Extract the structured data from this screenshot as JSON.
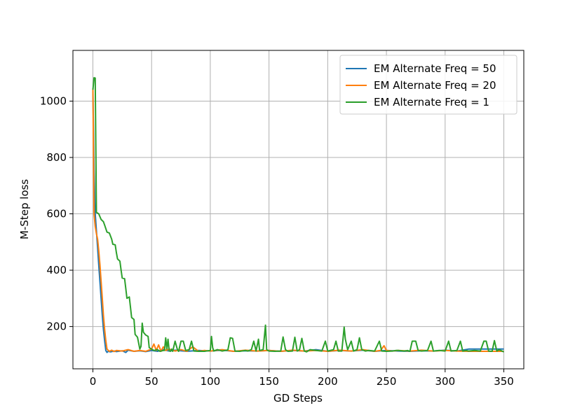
{
  "chart_data": {
    "type": "line",
    "title": "",
    "xlabel": "GD Steps",
    "ylabel": "M-Step loss",
    "xlim": [
      -17,
      367
    ],
    "ylim": [
      50,
      1180
    ],
    "xticks": [
      0,
      50,
      100,
      150,
      200,
      250,
      300,
      350
    ],
    "yticks": [
      200,
      400,
      600,
      800,
      1000
    ],
    "grid": true,
    "legend_position": "top-right",
    "series": [
      {
        "name": "EM Alternate Freq = 50",
        "color": "#1f77b4",
        "points": [
          [
            0,
            1035
          ],
          [
            1,
            760
          ],
          [
            2,
            600
          ],
          [
            3,
            540
          ],
          [
            4,
            480
          ],
          [
            5,
            420
          ],
          [
            6,
            360
          ],
          [
            7,
            300
          ],
          [
            8,
            240
          ],
          [
            9,
            190
          ],
          [
            10,
            150
          ],
          [
            11,
            115
          ],
          [
            12,
            108
          ],
          [
            13,
            112
          ],
          [
            15,
            110
          ],
          [
            18,
            113
          ],
          [
            20,
            111
          ],
          [
            25,
            114
          ],
          [
            28,
            108
          ],
          [
            30,
            116
          ],
          [
            35,
            112
          ],
          [
            40,
            114
          ],
          [
            45,
            111
          ],
          [
            50,
            115
          ],
          [
            55,
            112
          ],
          [
            60,
            118
          ],
          [
            65,
            113
          ],
          [
            70,
            116
          ],
          [
            80,
            112
          ],
          [
            90,
            115
          ],
          [
            100,
            113
          ],
          [
            110,
            116
          ],
          [
            120,
            112
          ],
          [
            130,
            114
          ],
          [
            140,
            113
          ],
          [
            150,
            115
          ],
          [
            160,
            112
          ],
          [
            170,
            115
          ],
          [
            180,
            113
          ],
          [
            190,
            118
          ],
          [
            200,
            112
          ],
          [
            210,
            115
          ],
          [
            220,
            113
          ],
          [
            230,
            116
          ],
          [
            240,
            112
          ],
          [
            250,
            115
          ],
          [
            260,
            113
          ],
          [
            270,
            112
          ],
          [
            280,
            114
          ],
          [
            290,
            113
          ],
          [
            300,
            116
          ],
          [
            310,
            113
          ],
          [
            320,
            120
          ],
          [
            330,
            120
          ],
          [
            340,
            120
          ],
          [
            350,
            120
          ]
        ]
      },
      {
        "name": "EM Alternate Freq = 20",
        "color": "#ff7f0e",
        "points": [
          [
            0,
            1045
          ],
          [
            1,
            600
          ],
          [
            2,
            555
          ],
          [
            3,
            530
          ],
          [
            4,
            510
          ],
          [
            5,
            470
          ],
          [
            6,
            420
          ],
          [
            7,
            360
          ],
          [
            8,
            300
          ],
          [
            9,
            240
          ],
          [
            10,
            190
          ],
          [
            11,
            150
          ],
          [
            12,
            120
          ],
          [
            14,
            112
          ],
          [
            16,
            116
          ],
          [
            18,
            111
          ],
          [
            20,
            115
          ],
          [
            25,
            113
          ],
          [
            30,
            118
          ],
          [
            35,
            112
          ],
          [
            40,
            115
          ],
          [
            45,
            112
          ],
          [
            50,
            120
          ],
          [
            52,
            138
          ],
          [
            54,
            115
          ],
          [
            56,
            135
          ],
          [
            58,
            112
          ],
          [
            60,
            128
          ],
          [
            62,
            115
          ],
          [
            65,
            120
          ],
          [
            70,
            113
          ],
          [
            75,
            118
          ],
          [
            80,
            112
          ],
          [
            85,
            128
          ],
          [
            90,
            112
          ],
          [
            95,
            115
          ],
          [
            100,
            113
          ],
          [
            110,
            118
          ],
          [
            120,
            112
          ],
          [
            130,
            116
          ],
          [
            140,
            113
          ],
          [
            150,
            115
          ],
          [
            160,
            112
          ],
          [
            170,
            116
          ],
          [
            180,
            113
          ],
          [
            190,
            115
          ],
          [
            200,
            112
          ],
          [
            210,
            116
          ],
          [
            220,
            113
          ],
          [
            230,
            118
          ],
          [
            240,
            112
          ],
          [
            245,
            115
          ],
          [
            248,
            132
          ],
          [
            250,
            115
          ],
          [
            255,
            113
          ],
          [
            260,
            115
          ],
          [
            270,
            113
          ],
          [
            280,
            116
          ],
          [
            290,
            113
          ],
          [
            300,
            115
          ],
          [
            310,
            113
          ],
          [
            320,
            112
          ],
          [
            330,
            112
          ],
          [
            340,
            112
          ],
          [
            350,
            112
          ]
        ]
      },
      {
        "name": "EM Alternate Freq = 1",
        "color": "#2ca02c",
        "points": [
          [
            0,
            1040
          ],
          [
            1,
            1083
          ],
          [
            2,
            1082
          ],
          [
            3,
            605
          ],
          [
            5,
            600
          ],
          [
            7,
            580
          ],
          [
            9,
            572
          ],
          [
            10,
            560
          ],
          [
            12,
            535
          ],
          [
            14,
            532
          ],
          [
            16,
            510
          ],
          [
            17,
            492
          ],
          [
            19,
            490
          ],
          [
            20,
            462
          ],
          [
            21,
            440
          ],
          [
            23,
            432
          ],
          [
            24,
            400
          ],
          [
            25,
            372
          ],
          [
            27,
            370
          ],
          [
            28,
            335
          ],
          [
            29,
            300
          ],
          [
            31,
            305
          ],
          [
            32,
            270
          ],
          [
            33,
            232
          ],
          [
            35,
            225
          ],
          [
            36,
            172
          ],
          [
            38,
            162
          ],
          [
            40,
            120
          ],
          [
            41,
            130
          ],
          [
            42,
            212
          ],
          [
            43,
            180
          ],
          [
            45,
            170
          ],
          [
            47,
            165
          ],
          [
            48,
            125
          ],
          [
            50,
            120
          ],
          [
            52,
            115
          ],
          [
            55,
            118
          ],
          [
            57,
            112
          ],
          [
            60,
            115
          ],
          [
            61,
            115
          ],
          [
            62,
            160
          ],
          [
            63,
            120
          ],
          [
            64,
            155
          ],
          [
            65,
            115
          ],
          [
            66,
            112
          ],
          [
            67,
            120
          ],
          [
            68,
            112
          ],
          [
            70,
            148
          ],
          [
            72,
            118
          ],
          [
            73,
            112
          ],
          [
            75,
            148
          ],
          [
            77,
            148
          ],
          [
            79,
            115
          ],
          [
            82,
            118
          ],
          [
            84,
            148
          ],
          [
            86,
            113
          ],
          [
            90,
            112
          ],
          [
            95,
            112
          ],
          [
            100,
            115
          ],
          [
            101,
            165
          ],
          [
            102,
            125
          ],
          [
            103,
            113
          ],
          [
            106,
            118
          ],
          [
            110,
            113
          ],
          [
            115,
            117
          ],
          [
            117,
            160
          ],
          [
            119,
            158
          ],
          [
            121,
            113
          ],
          [
            125,
            112
          ],
          [
            130,
            115
          ],
          [
            132,
            113
          ],
          [
            135,
            118
          ],
          [
            137,
            148
          ],
          [
            139,
            113
          ],
          [
            141,
            155
          ],
          [
            142,
            115
          ],
          [
            145,
            118
          ],
          [
            147,
            205
          ],
          [
            148,
            118
          ],
          [
            150,
            113
          ],
          [
            155,
            112
          ],
          [
            160,
            113
          ],
          [
            162,
            163
          ],
          [
            164,
            118
          ],
          [
            166,
            112
          ],
          [
            170,
            113
          ],
          [
            172,
            162
          ],
          [
            174,
            113
          ],
          [
            176,
            118
          ],
          [
            178,
            158
          ],
          [
            180,
            113
          ],
          [
            182,
            110
          ],
          [
            185,
            118
          ],
          [
            190,
            115
          ],
          [
            195,
            113
          ],
          [
            198,
            148
          ],
          [
            200,
            113
          ],
          [
            205,
            118
          ],
          [
            207,
            148
          ],
          [
            209,
            113
          ],
          [
            212,
            113
          ],
          [
            214,
            198
          ],
          [
            215,
            155
          ],
          [
            217,
            118
          ],
          [
            220,
            148
          ],
          [
            222,
            113
          ],
          [
            225,
            118
          ],
          [
            227,
            160
          ],
          [
            229,
            118
          ],
          [
            232,
            113
          ],
          [
            235,
            115
          ],
          [
            240,
            113
          ],
          [
            244,
            148
          ],
          [
            246,
            113
          ],
          [
            250,
            112
          ],
          [
            255,
            113
          ],
          [
            258,
            115
          ],
          [
            260,
            115
          ],
          [
            265,
            113
          ],
          [
            268,
            115
          ],
          [
            270,
            112
          ],
          [
            272,
            148
          ],
          [
            275,
            148
          ],
          [
            277,
            115
          ],
          [
            280,
            113
          ],
          [
            285,
            115
          ],
          [
            288,
            148
          ],
          [
            290,
            113
          ],
          [
            295,
            115
          ],
          [
            300,
            113
          ],
          [
            303,
            148
          ],
          [
            305,
            113
          ],
          [
            310,
            115
          ],
          [
            313,
            148
          ],
          [
            315,
            113
          ],
          [
            318,
            115
          ],
          [
            320,
            113
          ],
          [
            325,
            115
          ],
          [
            330,
            113
          ],
          [
            333,
            148
          ],
          [
            335,
            148
          ],
          [
            337,
            113
          ],
          [
            340,
            112
          ],
          [
            342,
            150
          ],
          [
            344,
            113
          ],
          [
            346,
            118
          ],
          [
            350,
            110
          ]
        ]
      }
    ]
  }
}
